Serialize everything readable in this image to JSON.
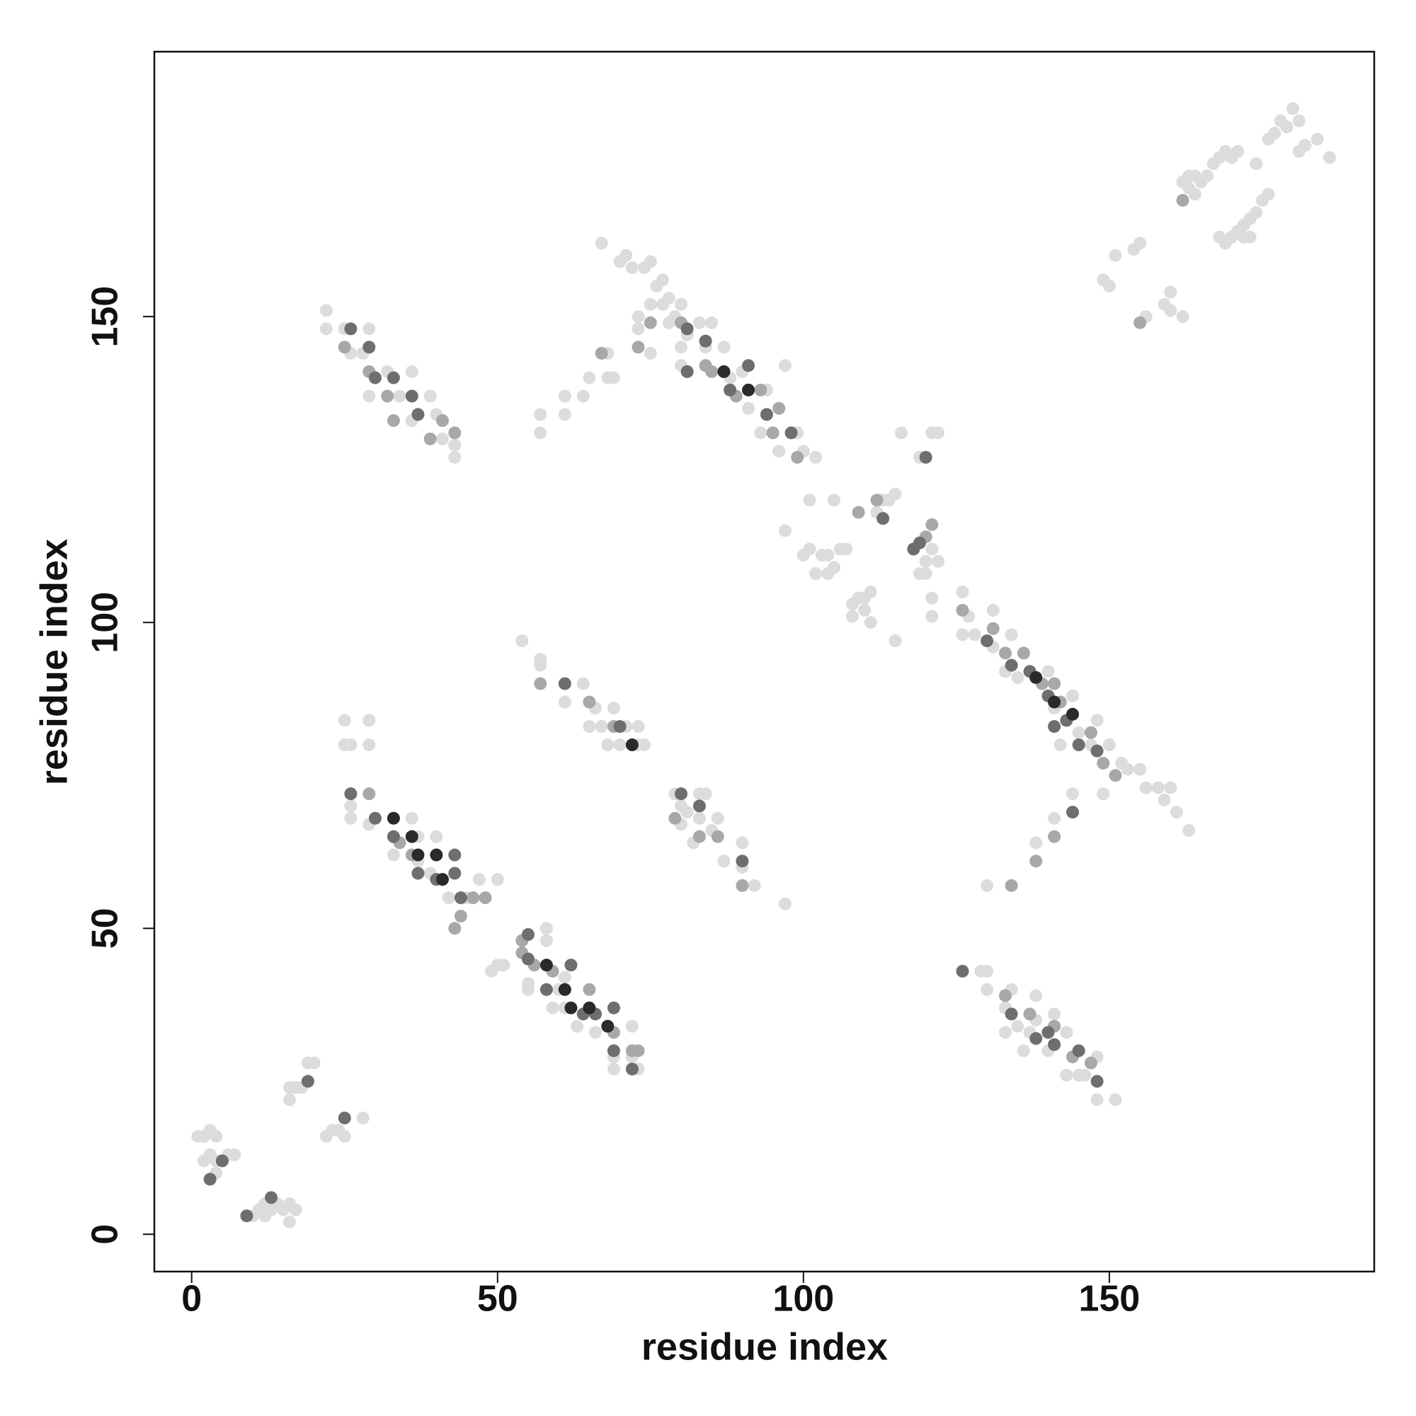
{
  "chart_data": {
    "type": "scatter",
    "x_label": "residue index",
    "y_label": "residue index",
    "xlim": [
      -6.1,
      193.3
    ],
    "ylim": [
      -6.1,
      193.3
    ],
    "xticks": [
      0,
      50,
      100,
      150
    ],
    "yticks": [
      0,
      50,
      100,
      150
    ],
    "grid": false,
    "series": [
      {
        "color": "#dcdcdc",
        "x": [
          1,
          2,
          3,
          4,
          2,
          3,
          4,
          6,
          7,
          4,
          10,
          11,
          12,
          12,
          13,
          14,
          15,
          16,
          16,
          17,
          16,
          16,
          17,
          18,
          20,
          19,
          22,
          23,
          24,
          25,
          28,
          22,
          22,
          25,
          29,
          26,
          28,
          32,
          34,
          36,
          36,
          39,
          40,
          41,
          43,
          43,
          29,
          25,
          29,
          25,
          26,
          29,
          26,
          29,
          33,
          36,
          37,
          37,
          40,
          45,
          47,
          50,
          42,
          26,
          39,
          49,
          50,
          51,
          55,
          58,
          58,
          60,
          61,
          61,
          63,
          66,
          69,
          72,
          72,
          69,
          73,
          59,
          55,
          54,
          57,
          57,
          61,
          64,
          66,
          65,
          67,
          69,
          71,
          68,
          70,
          73,
          73,
          74,
          79,
          80,
          80,
          83,
          84,
          83,
          82,
          85,
          86,
          87,
          90,
          90,
          92,
          97,
          81,
          57,
          57,
          61,
          61,
          64,
          65,
          68,
          68,
          69,
          67,
          70,
          71,
          72,
          73,
          73,
          75,
          75,
          74,
          75,
          76,
          77,
          77,
          78,
          78,
          79,
          80,
          80,
          81,
          83,
          84,
          85,
          87,
          88,
          90,
          91,
          94,
          93,
          96,
          99,
          100,
          102,
          97,
          80,
          97,
          101,
          105,
          100,
          101,
          102,
          103,
          104,
          104,
          105,
          106,
          107,
          108,
          108,
          109,
          110,
          110,
          111,
          111,
          112,
          113,
          114,
          115,
          116,
          115,
          120,
          120,
          119,
          121,
          122,
          121,
          119,
          121,
          122,
          121,
          126,
          126,
          127,
          128,
          131,
          131,
          133,
          134,
          135,
          140,
          141,
          144,
          145,
          147,
          148,
          149,
          150,
          152,
          153,
          155,
          156,
          158,
          160,
          159,
          161,
          163,
          144,
          142,
          138,
          130,
          141,
          129,
          130,
          130,
          134,
          133,
          135,
          133,
          137,
          138,
          138,
          140,
          141,
          143,
          145,
          146,
          148,
          148,
          151,
          136,
          143,
          149,
          150,
          151,
          154,
          155,
          156,
          159,
          160,
          160,
          162,
          162,
          163,
          164,
          165,
          166,
          167,
          168,
          169,
          170,
          171,
          164,
          163,
          168,
          169,
          170,
          171,
          172,
          173,
          174,
          175,
          176,
          172,
          173,
          174,
          176,
          177,
          179,
          181,
          182,
          184,
          186,
          180,
          181,
          178
        ],
        "values": [
          16,
          16,
          17,
          16,
          12,
          13,
          12,
          13,
          13,
          10,
          3,
          4,
          3,
          5,
          4,
          5,
          4,
          5,
          2,
          4,
          22,
          24,
          24,
          24,
          28,
          28,
          16,
          17,
          17,
          16,
          19,
          151,
          148,
          148,
          148,
          144,
          144,
          141,
          137,
          133,
          141,
          137,
          134,
          130,
          129,
          127,
          137,
          84,
          84,
          80,
          80,
          80,
          70,
          67,
          62,
          68,
          65,
          61,
          65,
          55,
          58,
          58,
          55,
          68,
          59,
          43,
          44,
          44,
          41,
          50,
          48,
          40,
          42,
          37,
          34,
          33,
          29,
          34,
          29,
          27,
          27,
          37,
          40,
          97,
          94,
          93,
          87,
          90,
          86,
          83,
          83,
          86,
          83,
          80,
          80,
          80,
          83,
          80,
          72,
          70,
          67,
          72,
          72,
          68,
          64,
          66,
          68,
          61,
          64,
          60,
          57,
          54,
          69,
          134,
          131,
          137,
          134,
          137,
          140,
          140,
          144,
          140,
          162,
          159,
          160,
          158,
          148,
          150,
          144,
          152,
          158,
          159,
          155,
          152,
          156,
          149,
          153,
          150,
          152,
          145,
          147,
          149,
          145,
          149,
          145,
          140,
          141,
          135,
          138,
          131,
          128,
          131,
          128,
          127,
          142,
          142,
          115,
          120,
          120,
          111,
          112,
          108,
          111,
          111,
          108,
          109,
          112,
          112,
          103,
          101,
          104,
          102,
          104,
          105,
          100,
          118,
          120,
          120,
          121,
          131,
          97,
          110,
          108,
          108,
          112,
          110,
          101,
          127,
          131,
          131,
          104,
          105,
          98,
          101,
          98,
          102,
          96,
          92,
          98,
          91,
          92,
          86,
          88,
          82,
          80,
          84,
          72,
          80,
          77,
          76,
          76,
          73,
          73,
          73,
          71,
          69,
          66,
          72,
          80,
          64,
          57,
          68,
          43,
          43,
          40,
          40,
          37,
          34,
          33,
          33,
          35,
          39,
          30,
          36,
          33,
          26,
          26,
          29,
          22,
          22,
          30,
          26,
          156,
          155,
          160,
          161,
          162,
          150,
          152,
          154,
          151,
          150,
          172,
          171,
          170,
          172,
          173,
          175,
          176,
          177,
          176,
          177,
          173,
          173,
          163,
          162,
          163,
          164,
          165,
          166,
          167,
          169,
          170,
          163,
          163,
          175,
          179,
          180,
          181,
          177,
          178,
          179,
          176,
          184,
          182,
          182
        ]
      },
      {
        "color": "#a8a8a8",
        "x": [
          29,
          32,
          33,
          39,
          41,
          43,
          25,
          29,
          34,
          36,
          44,
          46,
          48,
          43,
          54,
          54,
          56,
          59,
          65,
          69,
          72,
          73,
          57,
          65,
          69,
          79,
          83,
          86,
          90,
          67,
          73,
          75,
          80,
          84,
          85,
          89,
          93,
          96,
          95,
          99,
          109,
          112,
          120,
          121,
          126,
          131,
          133,
          136,
          139,
          141,
          142,
          147,
          149,
          151,
          133,
          137,
          141,
          144,
          147,
          155,
          162,
          138,
          141,
          134
        ],
        "values": [
          141,
          137,
          133,
          130,
          133,
          131,
          145,
          72,
          64,
          62,
          52,
          55,
          55,
          50,
          48,
          46,
          44,
          43,
          40,
          33,
          30,
          30,
          90,
          87,
          83,
          68,
          65,
          65,
          57,
          144,
          145,
          149,
          149,
          142,
          141,
          137,
          138,
          135,
          131,
          127,
          118,
          120,
          114,
          116,
          102,
          99,
          95,
          95,
          90,
          90,
          87,
          82,
          77,
          75,
          39,
          36,
          34,
          29,
          28,
          149,
          169,
          61,
          65,
          57
        ]
      },
      {
        "color": "#6e6e6e",
        "x": [
          3,
          5,
          9,
          13,
          19,
          25,
          26,
          29,
          30,
          33,
          36,
          37,
          26,
          30,
          33,
          37,
          40,
          43,
          43,
          44,
          55,
          55,
          58,
          62,
          64,
          66,
          69,
          69,
          72,
          70,
          80,
          83,
          84,
          81,
          81,
          88,
          91,
          94,
          98,
          113,
          118,
          120,
          130,
          134,
          137,
          140,
          141,
          143,
          145,
          148,
          134,
          138,
          141,
          140,
          145,
          148,
          144,
          90,
          126,
          61,
          119
        ],
        "values": [
          9,
          12,
          3,
          6,
          25,
          19,
          148,
          145,
          140,
          140,
          137,
          134,
          72,
          68,
          65,
          59,
          58,
          62,
          59,
          55,
          49,
          45,
          40,
          44,
          36,
          36,
          37,
          30,
          27,
          83,
          72,
          70,
          146,
          148,
          141,
          138,
          142,
          134,
          131,
          117,
          112,
          127,
          97,
          93,
          92,
          88,
          83,
          84,
          80,
          79,
          36,
          32,
          31,
          33,
          30,
          25,
          69,
          61,
          43,
          90,
          113
        ]
      },
      {
        "color": "#2a2a2a",
        "x": [
          33,
          36,
          37,
          40,
          41,
          58,
          61,
          62,
          65,
          68,
          87,
          91,
          72,
          138,
          141,
          144
        ],
        "values": [
          68,
          65,
          62,
          62,
          58,
          44,
          40,
          37,
          37,
          34,
          141,
          138,
          80,
          91,
          87,
          85
        ]
      }
    ]
  }
}
